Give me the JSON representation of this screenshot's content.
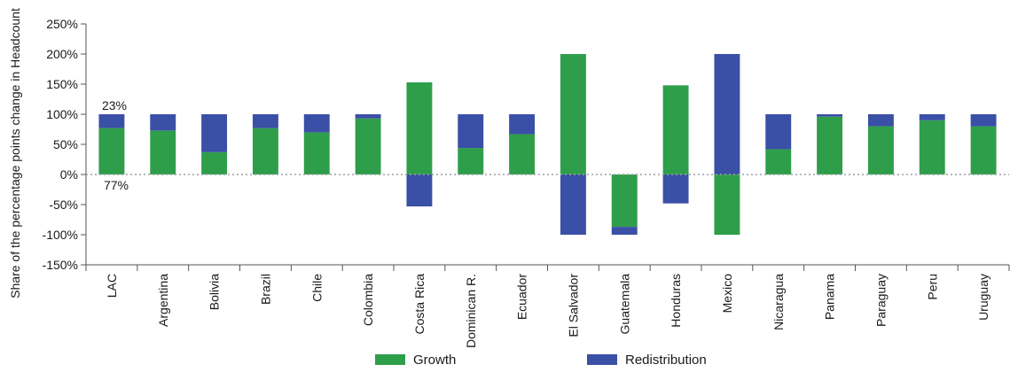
{
  "colors": {
    "growth": "#2e9e4a",
    "redistribution": "#3a4fa6"
  },
  "annotations": {
    "top": "23%",
    "bottom": "77%"
  },
  "chart_data": {
    "type": "bar",
    "stacked": true,
    "ylabel": "Share of the percentage points change in Headcount",
    "xlabel": "",
    "ylim": [
      -150,
      250
    ],
    "yticks": [
      -150,
      -100,
      -50,
      0,
      50,
      100,
      150,
      200,
      250
    ],
    "ytick_labels": [
      "-150%",
      "-100%",
      "-50%",
      "0%",
      "50%",
      "100%",
      "150%",
      "200%",
      "250%"
    ],
    "legend_position": "bottom",
    "categories": [
      "LAC",
      "Argentina",
      "Bolivia",
      "Brazil",
      "Chile",
      "Colombia",
      "Costa Rica",
      "Dominican R.",
      "Ecuador",
      "El Salvador",
      "Guatemala",
      "Honduras",
      "Mexico",
      "Nicaragua",
      "Panama",
      "Paraguay",
      "Peru",
      "Uruguay"
    ],
    "series": [
      {
        "name": "Growth",
        "values": [
          77,
          73,
          37,
          77,
          70,
          93,
          153,
          44,
          67,
          200,
          -87,
          148,
          -100,
          42,
          96,
          80,
          90,
          80
        ]
      },
      {
        "name": "Redistribution",
        "values": [
          23,
          27,
          63,
          23,
          30,
          7,
          -53,
          56,
          33,
          -100,
          -13,
          -48,
          200,
          58,
          4,
          20,
          10,
          20
        ]
      }
    ]
  }
}
